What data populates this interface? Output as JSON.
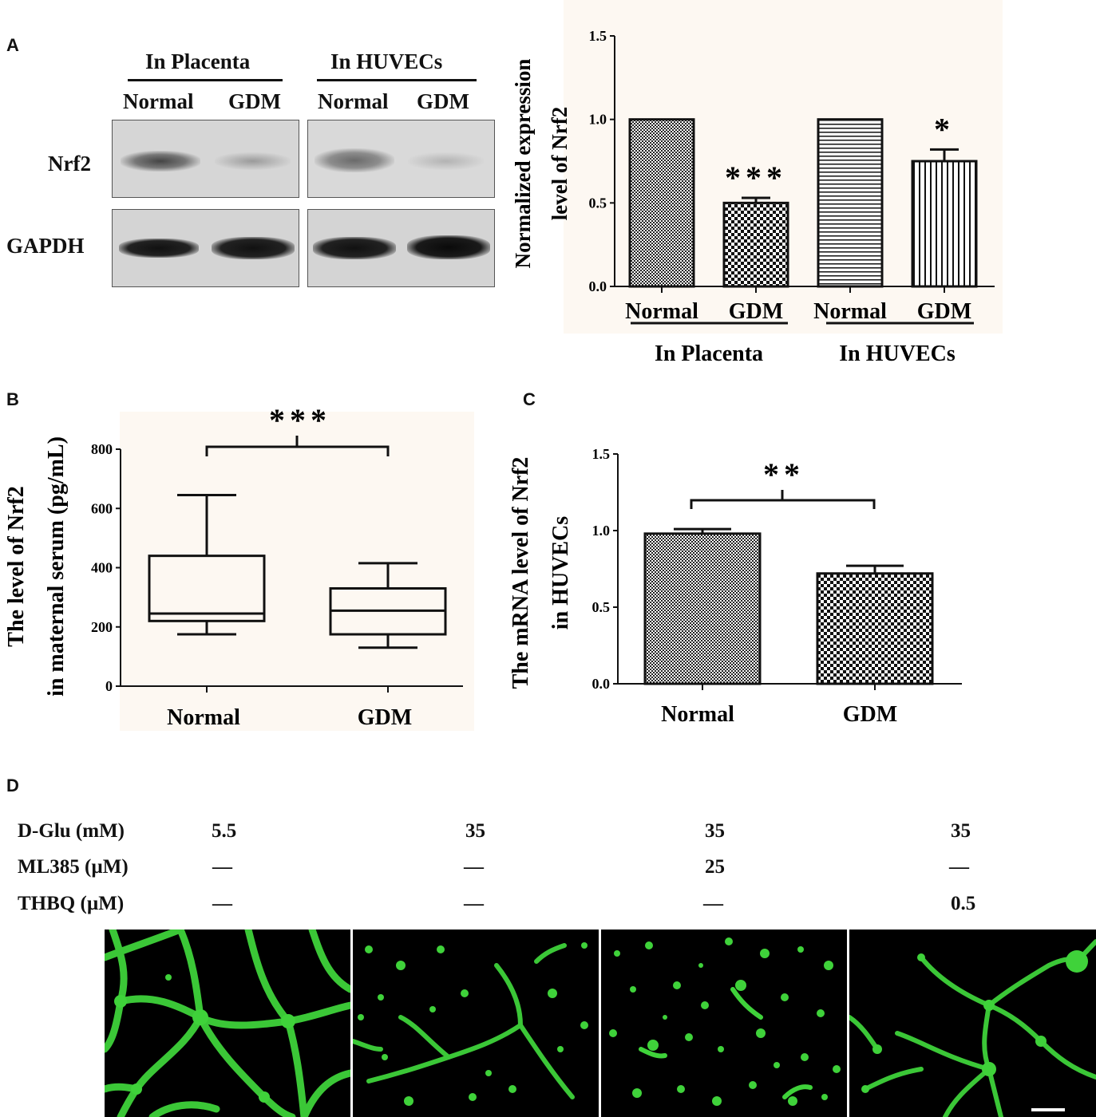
{
  "panels": {
    "A": "A",
    "B": "B",
    "C": "C",
    "D": "D"
  },
  "colors": {
    "fluorescence": "#3fd23a",
    "plot_bg": "#fdf8f2"
  },
  "panel_a_blot": {
    "group_placenta": "In Placenta",
    "group_huvec": "In HUVECs",
    "lanes": [
      "Normal",
      "GDM",
      "Normal",
      "GDM"
    ],
    "rows": [
      "Nrf2",
      "GAPDH"
    ]
  },
  "chart_data": [
    {
      "id": "A",
      "type": "bar",
      "categories": [
        "Normal",
        "GDM",
        "Normal",
        "GDM"
      ],
      "groups": [
        "In Placenta",
        "In HUVECs"
      ],
      "values": [
        1.0,
        0.5,
        1.0,
        0.75
      ],
      "errors": [
        0,
        0.03,
        0,
        0.07
      ],
      "significance": [
        "",
        "***",
        "",
        "*"
      ],
      "ylabel_lines": [
        "Normalized expression",
        "level of Nrf2"
      ],
      "ylim": [
        0,
        1.5
      ],
      "yticks": [
        "0.0",
        "0.5",
        "1.0",
        "1.5"
      ]
    },
    {
      "id": "B",
      "type": "box",
      "categories": [
        "Normal",
        "GDM"
      ],
      "boxes": [
        {
          "min": 175,
          "q1": 220,
          "median": 245,
          "q3": 440,
          "max": 645
        },
        {
          "min": 130,
          "q1": 175,
          "median": 255,
          "q3": 330,
          "max": 415
        }
      ],
      "significance": "***",
      "ylabel_lines": [
        "The level of Nrf2",
        "in maternal serum (pg/mL)"
      ],
      "ylim": [
        0,
        800
      ],
      "yticks": [
        "0",
        "200",
        "400",
        "600",
        "800"
      ]
    },
    {
      "id": "C",
      "type": "bar",
      "categories": [
        "Normal",
        "GDM"
      ],
      "values": [
        0.98,
        0.72
      ],
      "errors": [
        0.03,
        0.05
      ],
      "significance": "**",
      "ylabel_lines": [
        "The mRNA level of Nrf2",
        "in HUVECs"
      ],
      "ylim": [
        0,
        1.5
      ],
      "yticks": [
        "0.0",
        "0.5",
        "1.0",
        "1.5"
      ]
    }
  ],
  "panel_d": {
    "row_labels": [
      "D-Glu (mM)",
      "ML385 (µM)",
      "THBQ (µM)"
    ],
    "columns": [
      {
        "dglu": "5.5",
        "ml385": "—",
        "thbq": "—"
      },
      {
        "dglu": "35",
        "ml385": "—",
        "thbq": "—"
      },
      {
        "dglu": "35",
        "ml385": "25",
        "thbq": "—"
      },
      {
        "dglu": "35",
        "ml385": "—",
        "thbq": "0.5"
      }
    ]
  }
}
